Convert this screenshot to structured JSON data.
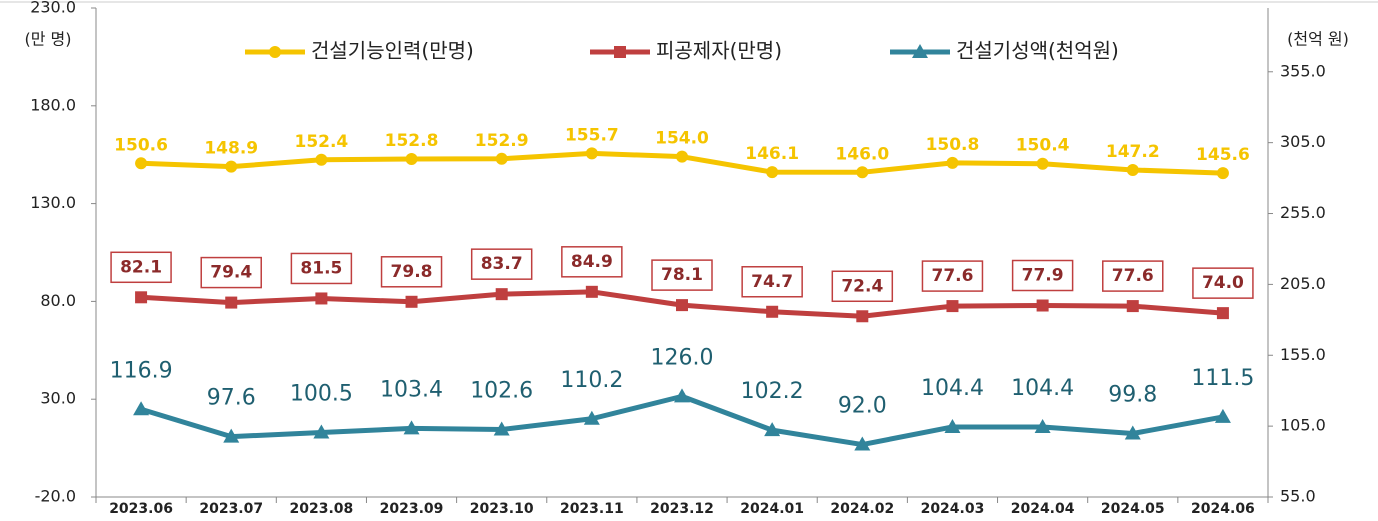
{
  "chart_data": {
    "type": "line",
    "y_label": "(만 명)",
    "y2_label": "(천억 원)",
    "categories": [
      "2023.06",
      "2023.07",
      "2023.08",
      "2023.09",
      "2023.10",
      "2023.11",
      "2023.12",
      "2024.01",
      "2024.02",
      "2024.03",
      "2024.04",
      "2024.05",
      "2024.06"
    ],
    "ylim": [
      -20,
      230
    ],
    "yticks": [
      {
        "value": -20,
        "label": "-20.0"
      },
      {
        "value": 30,
        "label": "30.0"
      },
      {
        "value": 80,
        "label": "80.0"
      },
      {
        "value": 130,
        "label": "130.0"
      },
      {
        "value": 180,
        "label": "180.0"
      },
      {
        "value": 230,
        "label": "230.0"
      }
    ],
    "y2lim": [
      55,
      400
    ],
    "y2ticks": [
      {
        "value": 55,
        "label": "55.0"
      },
      {
        "value": 105,
        "label": "105.0"
      },
      {
        "value": 155,
        "label": "155.0"
      },
      {
        "value": 205,
        "label": "205.0"
      },
      {
        "value": 255,
        "label": "255.0"
      },
      {
        "value": 305,
        "label": "305.0"
      },
      {
        "value": 355,
        "label": "355.0"
      }
    ],
    "grid": false,
    "series": [
      {
        "name": "건설기능인력(만명)",
        "color": "#f5c400",
        "marker": "circle",
        "values": [
          150.6,
          148.9,
          152.4,
          152.8,
          152.9,
          155.7,
          154,
          146.1,
          146,
          150.8,
          150.4,
          147.2,
          145.6
        ],
        "value_labels": [
          "150.6",
          "148.9",
          "152.4",
          "152.8",
          "152.9",
          "155.7",
          "154.0",
          "146.1",
          "146.0",
          "150.8",
          "150.4",
          "147.2",
          "145.6"
        ]
      },
      {
        "name": "피공제자(만명)",
        "color": "#bf3f3f",
        "marker": "square",
        "values": [
          82.1,
          79.4,
          81.5,
          79.8,
          83.7,
          84.9,
          78.1,
          74.7,
          72.4,
          77.6,
          77.9,
          77.6,
          74
        ],
        "value_labels": [
          "82.1",
          "79.4",
          "81.5",
          "79.8",
          "83.7",
          "84.9",
          "78.1",
          "74.7",
          "72.4",
          "77.6",
          "77.9",
          "77.6",
          "74.0"
        ]
      },
      {
        "name": "건설기성액(천억원)",
        "color": "#31849b",
        "marker": "triangle",
        "axis": "y2",
        "values": [
          116.9,
          97.6,
          100.5,
          103.4,
          102.6,
          110.2,
          126,
          102.2,
          92,
          104.4,
          104.4,
          99.8,
          111.5
        ],
        "value_labels": [
          "116.9",
          "97.6",
          "100.5",
          "103.4",
          "102.6",
          "110.2",
          "126.0",
          "102.2",
          "92.0",
          "104.4",
          "104.4",
          "99.8",
          "111.5"
        ]
      }
    ]
  }
}
